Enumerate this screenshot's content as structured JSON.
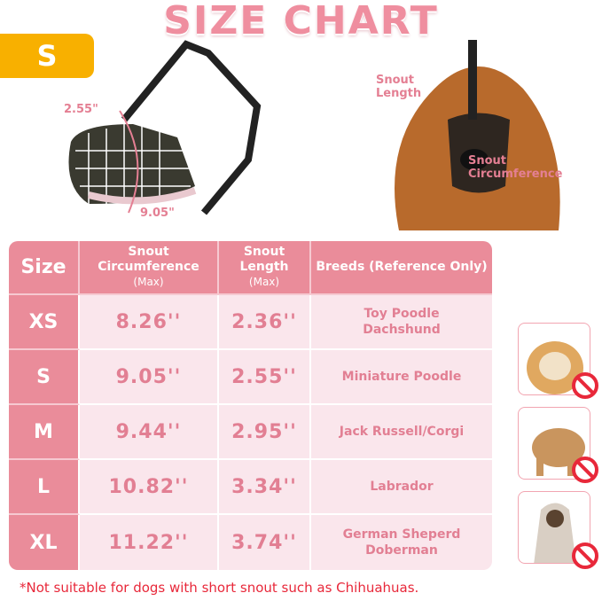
{
  "title": "SIZE CHART",
  "size_badge": "S",
  "muzzle": {
    "length": "2.55\"",
    "circumference": "9.05\""
  },
  "dog_labels": {
    "length": [
      "Snout",
      "Length"
    ],
    "circumference": [
      "Snout",
      "Circumference"
    ]
  },
  "table": {
    "headers": {
      "size": "Size",
      "circ": "Snout Circumference",
      "circ_sub": "(Max)",
      "len": "Snout Length",
      "len_sub": "(Max)",
      "breeds": "Breeds (Reference Only)"
    },
    "rows": [
      {
        "size": "XS",
        "circ": "8.26''",
        "len": "2.36''",
        "breeds": [
          "Toy Poodle",
          "Dachshund"
        ]
      },
      {
        "size": "S",
        "circ": "9.05''",
        "len": "2.55''",
        "breeds": [
          "Miniature Poodle"
        ]
      },
      {
        "size": "M",
        "circ": "9.44''",
        "len": "2.95''",
        "breeds": [
          "Jack Russell/Corgi"
        ]
      },
      {
        "size": "L",
        "circ": "10.82''",
        "len": "3.34''",
        "breeds": [
          "Labrador"
        ]
      },
      {
        "size": "XL",
        "circ": "11.22''",
        "len": "3.74''",
        "breeds": [
          "German Sheperd",
          "Doberman"
        ]
      }
    ]
  },
  "note": "*Not suitable for dogs with short snout such as Chihuahuas.",
  "colors": {
    "pink": "#ea8c9a",
    "light_pink": "#fae6ec",
    "orange": "#f8b000",
    "red": "#e8283a"
  }
}
